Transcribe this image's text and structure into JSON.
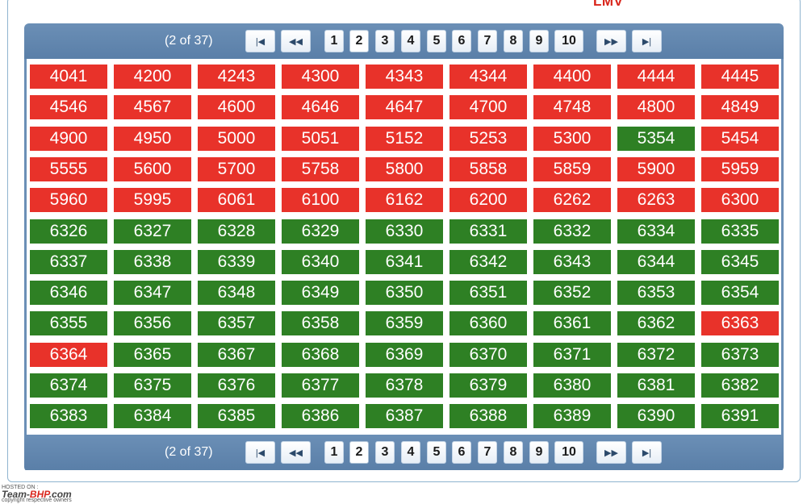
{
  "heading": "LMV",
  "pager": {
    "info": "(2 of 37)",
    "first_label": "|◀",
    "prev_label": "◀◀",
    "next_label": "▶▶",
    "last_label": "▶|",
    "pages": [
      "1",
      "2",
      "3",
      "4",
      "5",
      "6",
      "7",
      "8",
      "9",
      "10"
    ],
    "current_page": "2"
  },
  "colors": {
    "booked": "#e8322a",
    "available": "#2e8024",
    "pager_bg": "#6b8fb6"
  },
  "numbers": [
    {
      "n": "4041",
      "s": "booked"
    },
    {
      "n": "4200",
      "s": "booked"
    },
    {
      "n": "4243",
      "s": "booked"
    },
    {
      "n": "4300",
      "s": "booked"
    },
    {
      "n": "4343",
      "s": "booked"
    },
    {
      "n": "4344",
      "s": "booked"
    },
    {
      "n": "4400",
      "s": "booked"
    },
    {
      "n": "4444",
      "s": "booked"
    },
    {
      "n": "4445",
      "s": "booked"
    },
    {
      "n": "4546",
      "s": "booked"
    },
    {
      "n": "4567",
      "s": "booked"
    },
    {
      "n": "4600",
      "s": "booked"
    },
    {
      "n": "4646",
      "s": "booked"
    },
    {
      "n": "4647",
      "s": "booked"
    },
    {
      "n": "4700",
      "s": "booked"
    },
    {
      "n": "4748",
      "s": "booked"
    },
    {
      "n": "4800",
      "s": "booked"
    },
    {
      "n": "4849",
      "s": "booked"
    },
    {
      "n": "4900",
      "s": "booked"
    },
    {
      "n": "4950",
      "s": "booked"
    },
    {
      "n": "5000",
      "s": "booked"
    },
    {
      "n": "5051",
      "s": "booked"
    },
    {
      "n": "5152",
      "s": "booked"
    },
    {
      "n": "5253",
      "s": "booked"
    },
    {
      "n": "5300",
      "s": "booked"
    },
    {
      "n": "5354",
      "s": "free"
    },
    {
      "n": "5454",
      "s": "booked"
    },
    {
      "n": "5555",
      "s": "booked"
    },
    {
      "n": "5600",
      "s": "booked"
    },
    {
      "n": "5700",
      "s": "booked"
    },
    {
      "n": "5758",
      "s": "booked"
    },
    {
      "n": "5800",
      "s": "booked"
    },
    {
      "n": "5858",
      "s": "booked"
    },
    {
      "n": "5859",
      "s": "booked"
    },
    {
      "n": "5900",
      "s": "booked"
    },
    {
      "n": "5959",
      "s": "booked"
    },
    {
      "n": "5960",
      "s": "booked"
    },
    {
      "n": "5995",
      "s": "booked"
    },
    {
      "n": "6061",
      "s": "booked"
    },
    {
      "n": "6100",
      "s": "booked"
    },
    {
      "n": "6162",
      "s": "booked"
    },
    {
      "n": "6200",
      "s": "booked"
    },
    {
      "n": "6262",
      "s": "booked"
    },
    {
      "n": "6263",
      "s": "booked"
    },
    {
      "n": "6300",
      "s": "booked"
    },
    {
      "n": "6326",
      "s": "free"
    },
    {
      "n": "6327",
      "s": "free"
    },
    {
      "n": "6328",
      "s": "free"
    },
    {
      "n": "6329",
      "s": "free"
    },
    {
      "n": "6330",
      "s": "free"
    },
    {
      "n": "6331",
      "s": "free"
    },
    {
      "n": "6332",
      "s": "free"
    },
    {
      "n": "6334",
      "s": "free"
    },
    {
      "n": "6335",
      "s": "free"
    },
    {
      "n": "6337",
      "s": "free"
    },
    {
      "n": "6338",
      "s": "free"
    },
    {
      "n": "6339",
      "s": "free"
    },
    {
      "n": "6340",
      "s": "free"
    },
    {
      "n": "6341",
      "s": "free"
    },
    {
      "n": "6342",
      "s": "free"
    },
    {
      "n": "6343",
      "s": "free"
    },
    {
      "n": "6344",
      "s": "free"
    },
    {
      "n": "6345",
      "s": "free"
    },
    {
      "n": "6346",
      "s": "free"
    },
    {
      "n": "6347",
      "s": "free"
    },
    {
      "n": "6348",
      "s": "free"
    },
    {
      "n": "6349",
      "s": "free"
    },
    {
      "n": "6350",
      "s": "free"
    },
    {
      "n": "6351",
      "s": "free"
    },
    {
      "n": "6352",
      "s": "free"
    },
    {
      "n": "6353",
      "s": "free"
    },
    {
      "n": "6354",
      "s": "free"
    },
    {
      "n": "6355",
      "s": "free"
    },
    {
      "n": "6356",
      "s": "free"
    },
    {
      "n": "6357",
      "s": "free"
    },
    {
      "n": "6358",
      "s": "free"
    },
    {
      "n": "6359",
      "s": "free"
    },
    {
      "n": "6360",
      "s": "free"
    },
    {
      "n": "6361",
      "s": "free"
    },
    {
      "n": "6362",
      "s": "free"
    },
    {
      "n": "6363",
      "s": "booked"
    },
    {
      "n": "6364",
      "s": "booked"
    },
    {
      "n": "6365",
      "s": "free"
    },
    {
      "n": "6367",
      "s": "free"
    },
    {
      "n": "6368",
      "s": "free"
    },
    {
      "n": "6369",
      "s": "free"
    },
    {
      "n": "6370",
      "s": "free"
    },
    {
      "n": "6371",
      "s": "free"
    },
    {
      "n": "6372",
      "s": "free"
    },
    {
      "n": "6373",
      "s": "free"
    },
    {
      "n": "6374",
      "s": "free"
    },
    {
      "n": "6375",
      "s": "free"
    },
    {
      "n": "6376",
      "s": "free"
    },
    {
      "n": "6377",
      "s": "free"
    },
    {
      "n": "6378",
      "s": "free"
    },
    {
      "n": "6379",
      "s": "free"
    },
    {
      "n": "6380",
      "s": "free"
    },
    {
      "n": "6381",
      "s": "free"
    },
    {
      "n": "6382",
      "s": "free"
    },
    {
      "n": "6383",
      "s": "free"
    },
    {
      "n": "6384",
      "s": "free"
    },
    {
      "n": "6385",
      "s": "free"
    },
    {
      "n": "6386",
      "s": "free"
    },
    {
      "n": "6387",
      "s": "free"
    },
    {
      "n": "6388",
      "s": "free"
    },
    {
      "n": "6389",
      "s": "free"
    },
    {
      "n": "6390",
      "s": "free"
    },
    {
      "n": "6391",
      "s": "free"
    }
  ],
  "watermark": {
    "hosted": "HOSTED ON :",
    "brand_a": "Team-",
    "brand_b": "BHP",
    "brand_c": ".com",
    "copyright": "copyright respective owners"
  }
}
